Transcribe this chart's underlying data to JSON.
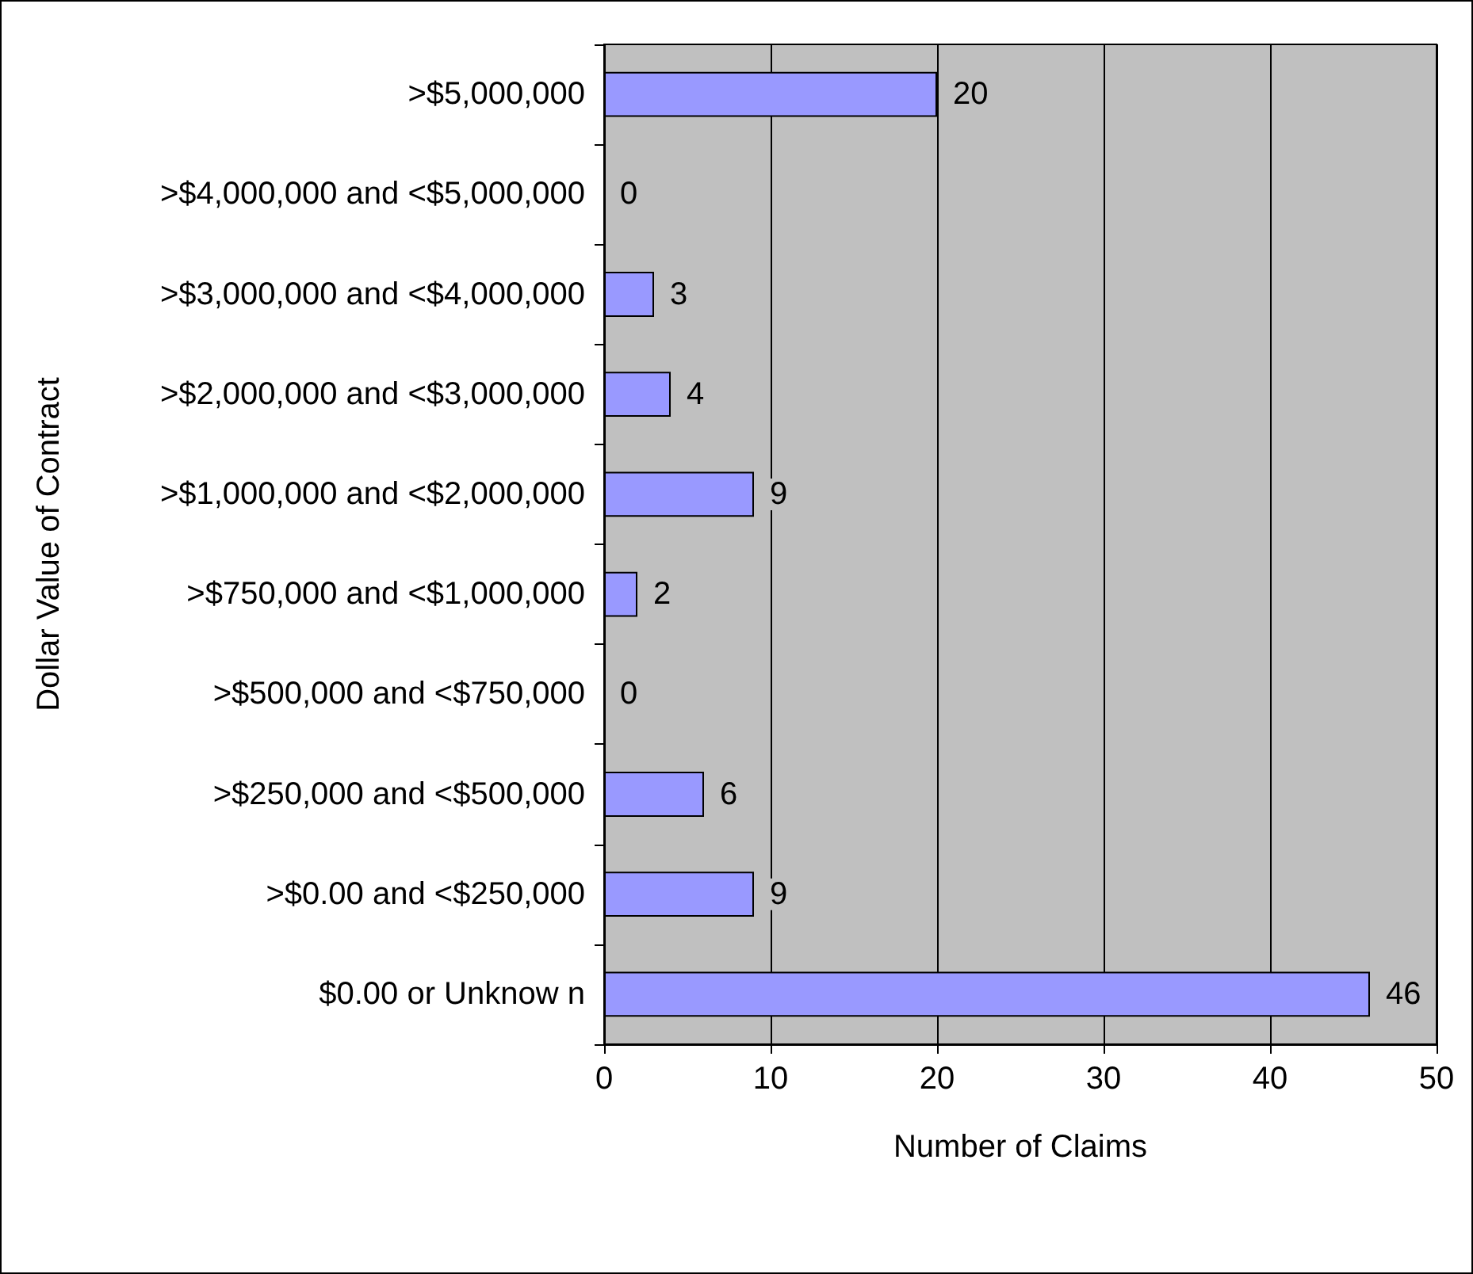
{
  "chart_data": {
    "type": "bar",
    "orientation": "horizontal",
    "xlabel": "Number of Claims",
    "ylabel": "Dollar Value of Contract",
    "categories": [
      ">$5,000,000",
      ">$4,000,000 and <$5,000,000",
      ">$3,000,000 and <$4,000,000",
      ">$2,000,000 and <$3,000,000",
      ">$1,000,000 and <$2,000,000",
      ">$750,000 and <$1,000,000",
      ">$500,000 and <$750,000",
      ">$250,000 and <$500,000",
      ">$0.00 and <$250,000",
      "$0.00 or Unknow n"
    ],
    "values": [
      20,
      0,
      3,
      4,
      9,
      2,
      0,
      6,
      9,
      46
    ],
    "color": "#9999ff",
    "xlim": [
      0,
      50
    ],
    "xticks": [
      0,
      10,
      20,
      30,
      40,
      50
    ],
    "grid": "x",
    "data_labels": true
  }
}
